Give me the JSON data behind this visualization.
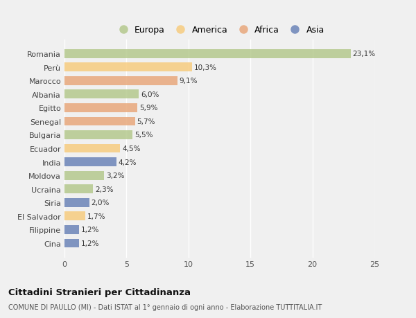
{
  "categories": [
    "Romania",
    "Perù",
    "Marocco",
    "Albania",
    "Egitto",
    "Senegal",
    "Bulgaria",
    "Ecuador",
    "India",
    "Moldova",
    "Ucraina",
    "Siria",
    "El Salvador",
    "Filippine",
    "Cina"
  ],
  "values": [
    23.1,
    10.3,
    9.1,
    6.0,
    5.9,
    5.7,
    5.5,
    4.5,
    4.2,
    3.2,
    2.3,
    2.0,
    1.7,
    1.2,
    1.2
  ],
  "labels": [
    "23,1%",
    "10,3%",
    "9,1%",
    "6,0%",
    "5,9%",
    "5,7%",
    "5,5%",
    "4,5%",
    "4,2%",
    "3,2%",
    "2,3%",
    "2,0%",
    "1,7%",
    "1,2%",
    "1,2%"
  ],
  "colors": [
    "#b5c98e",
    "#f7cc7f",
    "#e8a87c",
    "#b5c98e",
    "#e8a87c",
    "#e8a87c",
    "#b5c98e",
    "#f7cc7f",
    "#6b84b8",
    "#b5c98e",
    "#b5c98e",
    "#6b84b8",
    "#f7cc7f",
    "#6b84b8",
    "#6b84b8"
  ],
  "legend_labels": [
    "Europa",
    "America",
    "Africa",
    "Asia"
  ],
  "legend_colors": [
    "#b5c98e",
    "#f7cc7f",
    "#e8a87c",
    "#6b84b8"
  ],
  "xlim": [
    0,
    25
  ],
  "xticks": [
    0,
    5,
    10,
    15,
    20,
    25
  ],
  "background_color": "#f0f0f0",
  "title": "Cittadini Stranieri per Cittadinanza",
  "subtitle": "COMUNE DI PAULLO (MI) - Dati ISTAT al 1° gennaio di ogni anno - Elaborazione TUTTITALIA.IT",
  "bar_height": 0.65
}
